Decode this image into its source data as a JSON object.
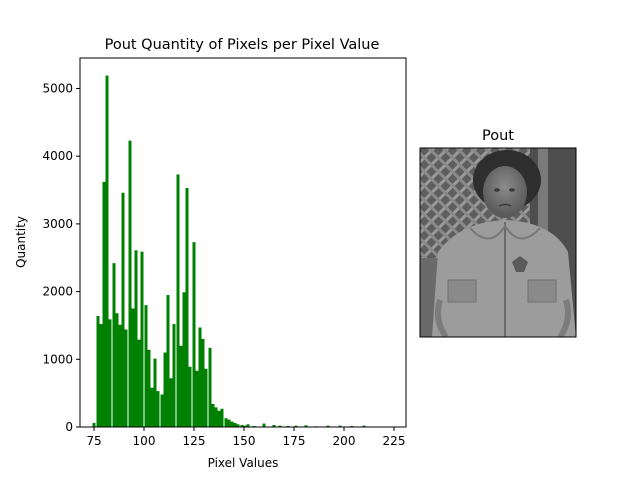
{
  "chart_data": [
    {
      "type": "bar",
      "title": "Pout Quantity of Pixels per Pixel Value",
      "xlabel": "Pixel Values",
      "ylabel": "Quantity",
      "xlim": [
        68,
        231
      ],
      "ylim": [
        0,
        5450
      ],
      "xticks": [
        75,
        100,
        125,
        150,
        175,
        200,
        225
      ],
      "yticks": [
        0,
        1000,
        2000,
        3000,
        4000,
        5000
      ],
      "bar_color": "#008000",
      "bin_width": 1.5,
      "bins": [
        {
          "x": 75,
          "y": 60
        },
        {
          "x": 77,
          "y": 1640
        },
        {
          "x": 78.5,
          "y": 1520
        },
        {
          "x": 80,
          "y": 3620
        },
        {
          "x": 81.5,
          "y": 5190
        },
        {
          "x": 83,
          "y": 1590
        },
        {
          "x": 85,
          "y": 2420
        },
        {
          "x": 86.5,
          "y": 1680
        },
        {
          "x": 88,
          "y": 1510
        },
        {
          "x": 89.5,
          "y": 3460
        },
        {
          "x": 91,
          "y": 1440
        },
        {
          "x": 93,
          "y": 4230
        },
        {
          "x": 94.5,
          "y": 1750
        },
        {
          "x": 96,
          "y": 2610
        },
        {
          "x": 97.5,
          "y": 1290
        },
        {
          "x": 99,
          "y": 2590
        },
        {
          "x": 101,
          "y": 1800
        },
        {
          "x": 102.5,
          "y": 1140
        },
        {
          "x": 104,
          "y": 580
        },
        {
          "x": 105.5,
          "y": 1010
        },
        {
          "x": 107,
          "y": 530
        },
        {
          "x": 109,
          "y": 480
        },
        {
          "x": 110.5,
          "y": 1100
        },
        {
          "x": 112,
          "y": 1950
        },
        {
          "x": 113.5,
          "y": 720
        },
        {
          "x": 115,
          "y": 1520
        },
        {
          "x": 117,
          "y": 3730
        },
        {
          "x": 118.5,
          "y": 1200
        },
        {
          "x": 120,
          "y": 1990
        },
        {
          "x": 121.5,
          "y": 3530
        },
        {
          "x": 123,
          "y": 890
        },
        {
          "x": 125,
          "y": 2730
        },
        {
          "x": 126.5,
          "y": 830
        },
        {
          "x": 128,
          "y": 1470
        },
        {
          "x": 129.5,
          "y": 1300
        },
        {
          "x": 131,
          "y": 860
        },
        {
          "x": 133,
          "y": 1170
        },
        {
          "x": 134.5,
          "y": 340
        },
        {
          "x": 136,
          "y": 290
        },
        {
          "x": 137.5,
          "y": 240
        },
        {
          "x": 139,
          "y": 270
        },
        {
          "x": 141,
          "y": 130
        },
        {
          "x": 142.5,
          "y": 110
        },
        {
          "x": 144,
          "y": 80
        },
        {
          "x": 145.5,
          "y": 60
        },
        {
          "x": 147,
          "y": 40
        },
        {
          "x": 149,
          "y": 30
        },
        {
          "x": 150.5,
          "y": 20
        },
        {
          "x": 152,
          "y": 40
        },
        {
          "x": 155,
          "y": 15
        },
        {
          "x": 160,
          "y": 50
        },
        {
          "x": 165,
          "y": 30
        },
        {
          "x": 168,
          "y": 20
        },
        {
          "x": 172,
          "y": 15
        },
        {
          "x": 176,
          "y": 20
        },
        {
          "x": 181,
          "y": 25
        },
        {
          "x": 186,
          "y": 10
        },
        {
          "x": 192,
          "y": 20
        },
        {
          "x": 198,
          "y": 20
        },
        {
          "x": 204,
          "y": 15
        },
        {
          "x": 210,
          "y": 20
        }
      ]
    }
  ],
  "image_panel": {
    "title": "Pout"
  }
}
